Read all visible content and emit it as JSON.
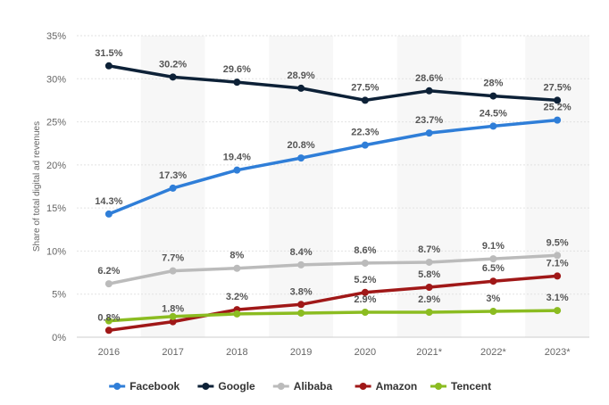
{
  "chart_data": {
    "type": "line",
    "ylabel": "Share of total digital ad revenues",
    "ylim": [
      0,
      35
    ],
    "yticks": [
      "0%",
      "5%",
      "10%",
      "15%",
      "20%",
      "25%",
      "30%",
      "35%"
    ],
    "grid": true,
    "legend_position": "bottom-center",
    "categories": [
      "2016",
      "2017",
      "2018",
      "2019",
      "2020",
      "2021*",
      "2022*",
      "2023*"
    ],
    "series": [
      {
        "name": "Facebook",
        "color": "#2f7ed8",
        "values": [
          14.3,
          17.3,
          19.4,
          20.8,
          22.3,
          23.7,
          24.5,
          25.2
        ],
        "labels": [
          "14.3%",
          "17.3%",
          "19.4%",
          "20.8%",
          "22.3%",
          "23.7%",
          "24.5%",
          "25.2%"
        ]
      },
      {
        "name": "Google",
        "color": "#0d2137",
        "values": [
          31.5,
          30.2,
          29.6,
          28.9,
          27.5,
          28.6,
          28,
          27.5
        ],
        "labels": [
          "31.5%",
          "30.2%",
          "29.6%",
          "28.9%",
          "27.5%",
          "28.6%",
          "28%",
          "27.5%"
        ]
      },
      {
        "name": "Alibaba",
        "color": "#bbbbbb",
        "values": [
          6.2,
          7.7,
          8,
          8.4,
          8.6,
          8.7,
          9.1,
          9.5
        ],
        "labels": [
          "6.2%",
          "7.7%",
          "8%",
          "8.4%",
          "8.6%",
          "8.7%",
          "9.1%",
          "9.5%"
        ]
      },
      {
        "name": "Amazon",
        "color": "#a01818",
        "values": [
          0.8,
          1.8,
          3.2,
          3.8,
          5.2,
          5.8,
          6.5,
          7.1
        ],
        "labels": [
          "0.8%",
          "1.8%",
          "3.2%",
          "3.8%",
          "5.2%",
          "5.8%",
          "6.5%",
          "7.1%"
        ]
      },
      {
        "name": "Tencent",
        "color": "#8bbc21",
        "values": [
          1.9,
          2.4,
          2.7,
          2.8,
          2.9,
          2.9,
          3.0,
          3.1
        ],
        "labels": [
          "",
          "",
          "",
          "",
          "2.9%",
          "2.9%",
          "3%",
          "3.1%"
        ]
      }
    ]
  }
}
